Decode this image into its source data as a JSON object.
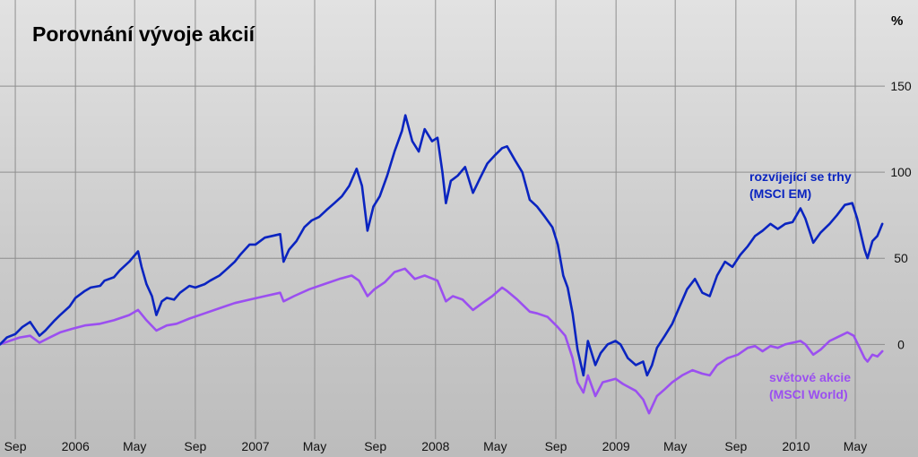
{
  "chart_data": {
    "type": "line",
    "title": "Porovnání vývoje akcií",
    "unit": "%",
    "xlabel": "",
    "ylabel": "",
    "xlim": [
      "2005-08-01",
      "2010-06-30"
    ],
    "ylim": [
      -55,
      200
    ],
    "y_ticks": [
      0,
      50,
      100,
      150
    ],
    "x_ticks": [
      {
        "date": "2005-09-01",
        "label": "Sep"
      },
      {
        "date": "2006-01-01",
        "label": "2006"
      },
      {
        "date": "2006-05-01",
        "label": "May"
      },
      {
        "date": "2006-09-01",
        "label": "Sep"
      },
      {
        "date": "2007-01-01",
        "label": "2007"
      },
      {
        "date": "2007-05-01",
        "label": "May"
      },
      {
        "date": "2007-09-01",
        "label": "Sep"
      },
      {
        "date": "2008-01-01",
        "label": "2008"
      },
      {
        "date": "2008-05-01",
        "label": "May"
      },
      {
        "date": "2008-09-01",
        "label": "Sep"
      },
      {
        "date": "2009-01-01",
        "label": "2009"
      },
      {
        "date": "2009-05-01",
        "label": "May"
      },
      {
        "date": "2009-09-01",
        "label": "Sep"
      },
      {
        "date": "2010-01-01",
        "label": "2010"
      },
      {
        "date": "2010-05-01",
        "label": "May"
      }
    ],
    "grid": true,
    "y_axis_side": "right",
    "background": "#cfcfcf",
    "series": [
      {
        "name": "rozvíjející se trhy (MSCI EM)",
        "label_lines": [
          "rozvíjející se trhy",
          "(MSCI EM)"
        ],
        "color": "#0a24c0",
        "points": [
          [
            "2005-08-01",
            0
          ],
          [
            "2005-08-15",
            4
          ],
          [
            "2005-09-01",
            6
          ],
          [
            "2005-09-15",
            10
          ],
          [
            "2005-10-01",
            13
          ],
          [
            "2005-10-20",
            5
          ],
          [
            "2005-11-01",
            8
          ],
          [
            "2005-11-20",
            14
          ],
          [
            "2005-12-01",
            17
          ],
          [
            "2005-12-20",
            22
          ],
          [
            "2006-01-01",
            27
          ],
          [
            "2006-01-20",
            31
          ],
          [
            "2006-02-01",
            33
          ],
          [
            "2006-02-20",
            34
          ],
          [
            "2006-03-01",
            37
          ],
          [
            "2006-03-20",
            39
          ],
          [
            "2006-04-01",
            43
          ],
          [
            "2006-04-20",
            48
          ],
          [
            "2006-05-08",
            54
          ],
          [
            "2006-05-15",
            45
          ],
          [
            "2006-05-25",
            35
          ],
          [
            "2006-06-05",
            28
          ],
          [
            "2006-06-14",
            17
          ],
          [
            "2006-06-25",
            25
          ],
          [
            "2006-07-05",
            27
          ],
          [
            "2006-07-20",
            26
          ],
          [
            "2006-08-01",
            30
          ],
          [
            "2006-08-20",
            34
          ],
          [
            "2006-09-01",
            33
          ],
          [
            "2006-09-20",
            35
          ],
          [
            "2006-10-01",
            37
          ],
          [
            "2006-10-20",
            40
          ],
          [
            "2006-11-01",
            43
          ],
          [
            "2006-11-20",
            48
          ],
          [
            "2006-12-01",
            52
          ],
          [
            "2006-12-20",
            58
          ],
          [
            "2007-01-01",
            58
          ],
          [
            "2007-01-20",
            62
          ],
          [
            "2007-02-20",
            64
          ],
          [
            "2007-02-27",
            48
          ],
          [
            "2007-03-10",
            55
          ],
          [
            "2007-03-25",
            60
          ],
          [
            "2007-04-10",
            68
          ],
          [
            "2007-04-25",
            72
          ],
          [
            "2007-05-10",
            74
          ],
          [
            "2007-05-25",
            78
          ],
          [
            "2007-06-10",
            82
          ],
          [
            "2007-06-25",
            86
          ],
          [
            "2007-07-10",
            92
          ],
          [
            "2007-07-25",
            102
          ],
          [
            "2007-08-05",
            92
          ],
          [
            "2007-08-16",
            66
          ],
          [
            "2007-08-28",
            80
          ],
          [
            "2007-09-10",
            86
          ],
          [
            "2007-09-25",
            98
          ],
          [
            "2007-10-10",
            112
          ],
          [
            "2007-10-25",
            124
          ],
          [
            "2007-11-01",
            133
          ],
          [
            "2007-11-15",
            118
          ],
          [
            "2007-11-28",
            112
          ],
          [
            "2007-12-10",
            125
          ],
          [
            "2007-12-25",
            118
          ],
          [
            "2008-01-05",
            120
          ],
          [
            "2008-01-15",
            100
          ],
          [
            "2008-01-22",
            82
          ],
          [
            "2008-02-01",
            95
          ],
          [
            "2008-02-15",
            98
          ],
          [
            "2008-03-01",
            103
          ],
          [
            "2008-03-17",
            88
          ],
          [
            "2008-04-01",
            97
          ],
          [
            "2008-04-15",
            105
          ],
          [
            "2008-05-01",
            110
          ],
          [
            "2008-05-15",
            114
          ],
          [
            "2008-05-25",
            115
          ],
          [
            "2008-06-10",
            107
          ],
          [
            "2008-06-25",
            100
          ],
          [
            "2008-07-10",
            84
          ],
          [
            "2008-07-25",
            80
          ],
          [
            "2008-08-10",
            74
          ],
          [
            "2008-08-25",
            68
          ],
          [
            "2008-09-05",
            58
          ],
          [
            "2008-09-16",
            40
          ],
          [
            "2008-09-25",
            33
          ],
          [
            "2008-10-05",
            18
          ],
          [
            "2008-10-15",
            -3
          ],
          [
            "2008-10-27",
            -18
          ],
          [
            "2008-11-05",
            2
          ],
          [
            "2008-11-20",
            -12
          ],
          [
            "2008-12-01",
            -5
          ],
          [
            "2008-12-15",
            0
          ],
          [
            "2008-12-31",
            2
          ],
          [
            "2009-01-10",
            0
          ],
          [
            "2009-01-25",
            -8
          ],
          [
            "2009-02-10",
            -12
          ],
          [
            "2009-02-25",
            -10
          ],
          [
            "2009-03-05",
            -18
          ],
          [
            "2009-03-15",
            -12
          ],
          [
            "2009-03-25",
            -2
          ],
          [
            "2009-04-10",
            5
          ],
          [
            "2009-04-25",
            12
          ],
          [
            "2009-05-10",
            22
          ],
          [
            "2009-05-25",
            32
          ],
          [
            "2009-06-10",
            38
          ],
          [
            "2009-06-25",
            30
          ],
          [
            "2009-07-10",
            28
          ],
          [
            "2009-07-25",
            40
          ],
          [
            "2009-08-10",
            48
          ],
          [
            "2009-08-25",
            45
          ],
          [
            "2009-09-10",
            52
          ],
          [
            "2009-09-25",
            57
          ],
          [
            "2009-10-10",
            63
          ],
          [
            "2009-10-25",
            66
          ],
          [
            "2009-11-10",
            70
          ],
          [
            "2009-11-25",
            67
          ],
          [
            "2009-12-10",
            70
          ],
          [
            "2009-12-25",
            71
          ],
          [
            "2010-01-10",
            79
          ],
          [
            "2010-01-20",
            73
          ],
          [
            "2010-02-05",
            59
          ],
          [
            "2010-02-20",
            65
          ],
          [
            "2010-03-10",
            70
          ],
          [
            "2010-03-25",
            75
          ],
          [
            "2010-04-10",
            81
          ],
          [
            "2010-04-25",
            82
          ],
          [
            "2010-05-05",
            73
          ],
          [
            "2010-05-20",
            55
          ],
          [
            "2010-05-26",
            50
          ],
          [
            "2010-06-05",
            60
          ],
          [
            "2010-06-15",
            63
          ],
          [
            "2010-06-25",
            70
          ]
        ]
      },
      {
        "name": "světové akcie (MSCI World)",
        "label_lines": [
          "světové akcie",
          "(MSCI World)"
        ],
        "color": "#9b4ff0",
        "points": [
          [
            "2005-08-01",
            0
          ],
          [
            "2005-08-20",
            2
          ],
          [
            "2005-09-10",
            4
          ],
          [
            "2005-10-01",
            5
          ],
          [
            "2005-10-20",
            1
          ],
          [
            "2005-11-10",
            4
          ],
          [
            "2005-12-01",
            7
          ],
          [
            "2005-12-25",
            9
          ],
          [
            "2006-01-20",
            11
          ],
          [
            "2006-02-20",
            12
          ],
          [
            "2006-03-20",
            14
          ],
          [
            "2006-04-20",
            17
          ],
          [
            "2006-05-08",
            20
          ],
          [
            "2006-05-25",
            14
          ],
          [
            "2006-06-14",
            8
          ],
          [
            "2006-07-05",
            11
          ],
          [
            "2006-07-25",
            12
          ],
          [
            "2006-08-20",
            15
          ],
          [
            "2006-09-20",
            18
          ],
          [
            "2006-10-20",
            21
          ],
          [
            "2006-11-20",
            24
          ],
          [
            "2006-12-20",
            26
          ],
          [
            "2007-01-20",
            28
          ],
          [
            "2007-02-20",
            30
          ],
          [
            "2007-02-27",
            25
          ],
          [
            "2007-03-20",
            28
          ],
          [
            "2007-04-20",
            32
          ],
          [
            "2007-05-20",
            35
          ],
          [
            "2007-06-20",
            38
          ],
          [
            "2007-07-15",
            40
          ],
          [
            "2007-07-30",
            37
          ],
          [
            "2007-08-16",
            28
          ],
          [
            "2007-08-30",
            32
          ],
          [
            "2007-09-20",
            36
          ],
          [
            "2007-10-10",
            42
          ],
          [
            "2007-10-31",
            44
          ],
          [
            "2007-11-20",
            38
          ],
          [
            "2007-12-10",
            40
          ],
          [
            "2008-01-05",
            37
          ],
          [
            "2008-01-22",
            25
          ],
          [
            "2008-02-05",
            28
          ],
          [
            "2008-02-25",
            26
          ],
          [
            "2008-03-17",
            20
          ],
          [
            "2008-04-05",
            24
          ],
          [
            "2008-04-25",
            28
          ],
          [
            "2008-05-15",
            33
          ],
          [
            "2008-05-25",
            31
          ],
          [
            "2008-06-15",
            26
          ],
          [
            "2008-07-10",
            19
          ],
          [
            "2008-07-25",
            18
          ],
          [
            "2008-08-15",
            16
          ],
          [
            "2008-09-05",
            10
          ],
          [
            "2008-09-20",
            5
          ],
          [
            "2008-10-05",
            -8
          ],
          [
            "2008-10-15",
            -22
          ],
          [
            "2008-10-27",
            -28
          ],
          [
            "2008-11-05",
            -18
          ],
          [
            "2008-11-20",
            -30
          ],
          [
            "2008-12-05",
            -22
          ],
          [
            "2008-12-31",
            -20
          ],
          [
            "2009-01-15",
            -23
          ],
          [
            "2009-02-10",
            -27
          ],
          [
            "2009-02-25",
            -32
          ],
          [
            "2009-03-09",
            -40
          ],
          [
            "2009-03-25",
            -30
          ],
          [
            "2009-04-10",
            -26
          ],
          [
            "2009-04-25",
            -22
          ],
          [
            "2009-05-15",
            -18
          ],
          [
            "2009-06-05",
            -15
          ],
          [
            "2009-06-25",
            -17
          ],
          [
            "2009-07-10",
            -18
          ],
          [
            "2009-07-25",
            -12
          ],
          [
            "2009-08-15",
            -8
          ],
          [
            "2009-09-05",
            -6
          ],
          [
            "2009-09-25",
            -2
          ],
          [
            "2009-10-10",
            -1
          ],
          [
            "2009-10-25",
            -4
          ],
          [
            "2009-11-10",
            -1
          ],
          [
            "2009-11-25",
            -2
          ],
          [
            "2009-12-10",
            0
          ],
          [
            "2010-01-10",
            2
          ],
          [
            "2010-01-20",
            0
          ],
          [
            "2010-02-05",
            -6
          ],
          [
            "2010-02-20",
            -3
          ],
          [
            "2010-03-10",
            2
          ],
          [
            "2010-03-25",
            4
          ],
          [
            "2010-04-15",
            7
          ],
          [
            "2010-04-28",
            5
          ],
          [
            "2010-05-10",
            -2
          ],
          [
            "2010-05-20",
            -8
          ],
          [
            "2010-05-26",
            -10
          ],
          [
            "2010-06-05",
            -6
          ],
          [
            "2010-06-15",
            -7
          ],
          [
            "2010-06-25",
            -4
          ]
        ]
      }
    ]
  }
}
